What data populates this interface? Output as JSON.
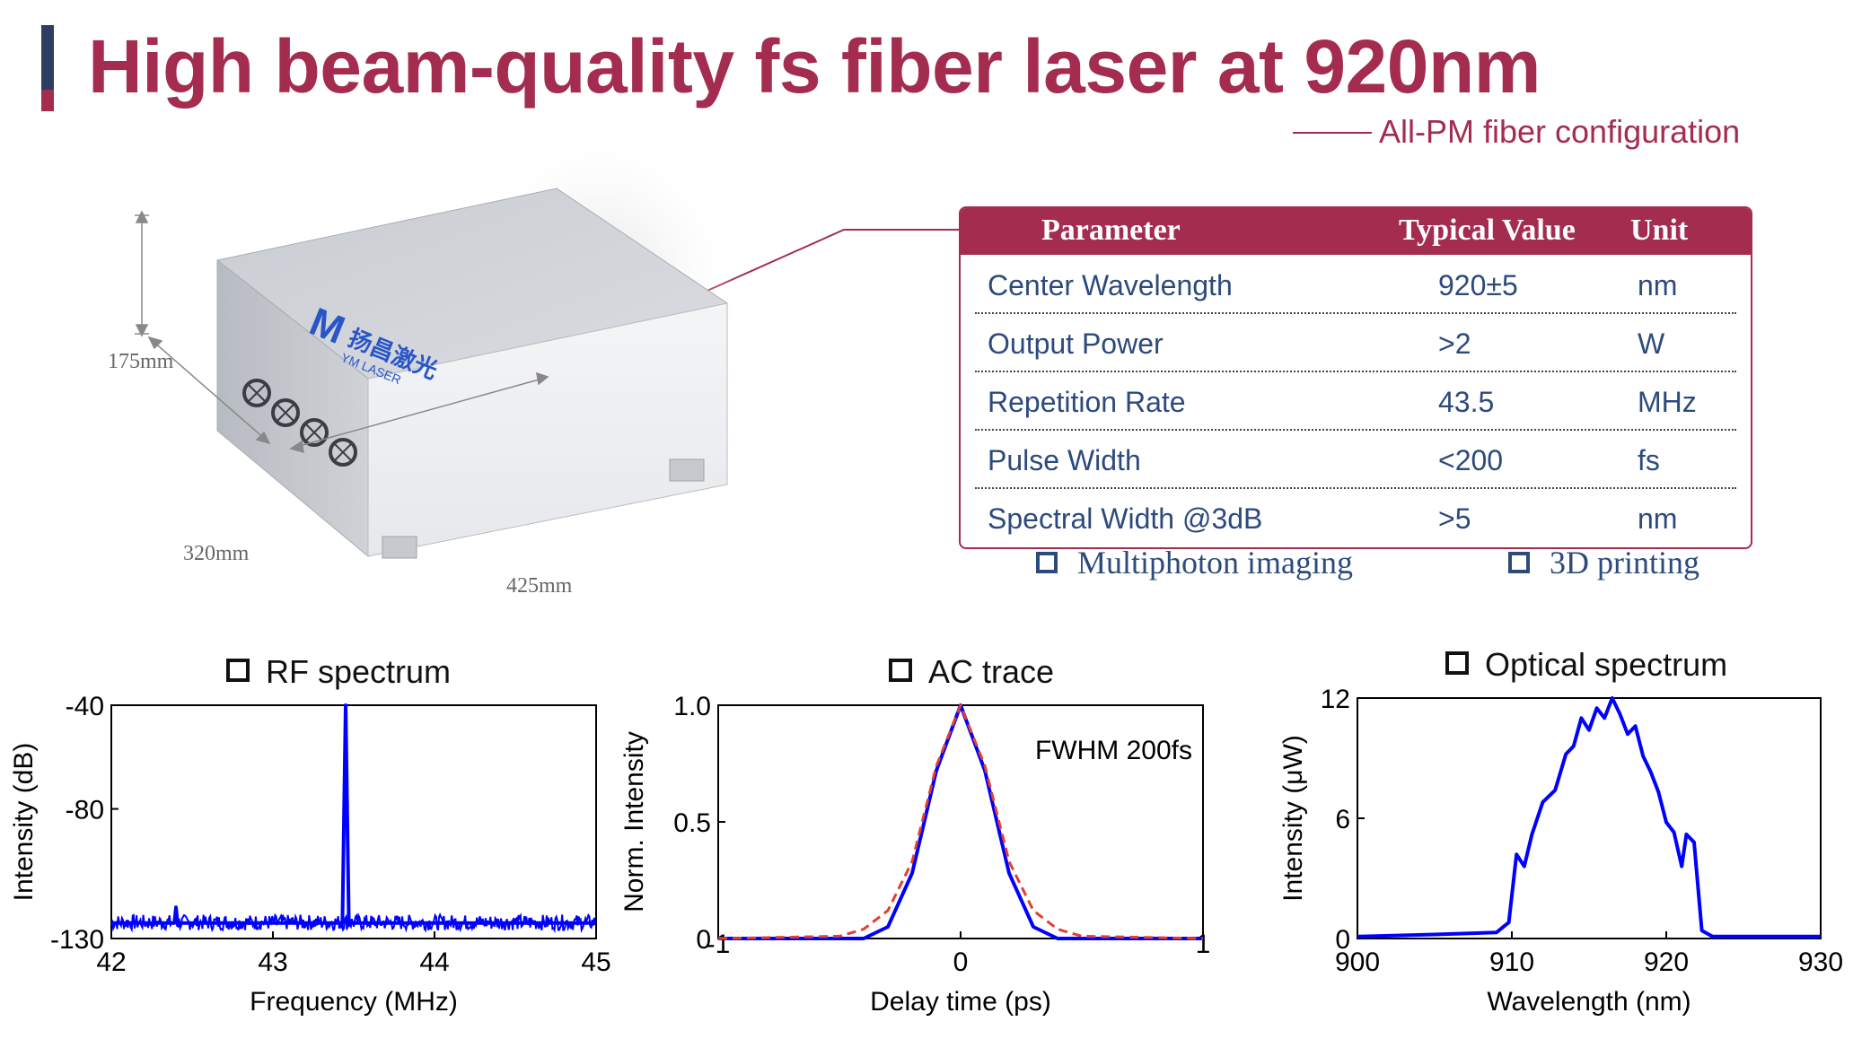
{
  "header": {
    "title": "High beam-quality fs fiber laser at 920nm",
    "subtitle": "All-PM fiber configuration"
  },
  "product": {
    "logo_text": "扬昌激光",
    "logo_sub": "YM LASER",
    "dimensions": {
      "height": "175mm",
      "depth": "320mm",
      "width": "425mm"
    }
  },
  "spec_table": {
    "headers": [
      "Parameter",
      "Typical Value",
      "Unit"
    ],
    "rows": [
      [
        "Center Wavelength",
        "920±5",
        "nm"
      ],
      [
        "Output Power",
        ">2",
        "W"
      ],
      [
        "Repetition Rate",
        "43.5",
        "MHz"
      ],
      [
        "Pulse Width",
        "<200",
        "fs"
      ],
      [
        "Spectral Width @3dB",
        ">5",
        "nm"
      ]
    ]
  },
  "applications": [
    "Multiphoton imaging",
    "3D printing"
  ],
  "colors": {
    "accent": "#a32c4f",
    "navy": "#2d4a7c",
    "series": "#0000ff",
    "fit": "#e04030"
  },
  "chart_data": [
    {
      "type": "line",
      "title": "RF spectrum",
      "xlabel": "Frequency (MHz)",
      "ylabel": "Intensity (dB)",
      "xlim": [
        42,
        45
      ],
      "ylim": [
        -130,
        -40
      ],
      "xticks": [
        "42",
        "43",
        "44",
        "45"
      ],
      "yticks": [
        "-40",
        "-80",
        "-130"
      ],
      "series": [
        {
          "noise_floor_db": -125,
          "points": [
            [
              42.0,
              -124
            ],
            [
              42.39,
              -124
            ],
            [
              42.4,
              -118
            ],
            [
              42.41,
              -124
            ],
            [
              43.43,
              -124
            ],
            [
              43.45,
              -40
            ],
            [
              43.47,
              -124
            ],
            [
              45.0,
              -124
            ]
          ]
        }
      ]
    },
    {
      "type": "line",
      "title": "AC trace",
      "xlabel": "Delay time (ps)",
      "ylabel": "Norm. Intensity",
      "xlim": [
        -1,
        1
      ],
      "ylim": [
        0,
        1.0
      ],
      "xticks": [
        "-1",
        "0",
        "1"
      ],
      "yticks": [
        "0",
        "0.5",
        "1.0"
      ],
      "annotation": "FWHM 200fs",
      "series": [
        {
          "points": [
            [
              -1,
              0
            ],
            [
              -0.4,
              0
            ],
            [
              -0.3,
              0.05
            ],
            [
              -0.2,
              0.28
            ],
            [
              -0.1,
              0.72
            ],
            [
              0,
              1
            ],
            [
              0.1,
              0.72
            ],
            [
              0.2,
              0.28
            ],
            [
              0.3,
              0.05
            ],
            [
              0.4,
              0
            ],
            [
              1,
              0
            ]
          ]
        },
        {
          "style": "dashed",
          "points": [
            [
              -1,
              0
            ],
            [
              -0.5,
              0.01
            ],
            [
              -0.4,
              0.04
            ],
            [
              -0.3,
              0.12
            ],
            [
              -0.2,
              0.33
            ],
            [
              -0.1,
              0.74
            ],
            [
              0,
              1
            ],
            [
              0.1,
              0.74
            ],
            [
              0.2,
              0.33
            ],
            [
              0.3,
              0.12
            ],
            [
              0.4,
              0.04
            ],
            [
              0.5,
              0.01
            ],
            [
              1,
              0
            ]
          ]
        }
      ]
    },
    {
      "type": "line",
      "title": "Optical spectrum",
      "xlabel": "Wavelength (nm)",
      "ylabel": "Intensity (μW)",
      "xlim": [
        900,
        930
      ],
      "ylim": [
        0,
        12
      ],
      "xticks": [
        "900",
        "910",
        "920",
        "930"
      ],
      "yticks": [
        "0",
        "6",
        "12"
      ],
      "series": [
        {
          "points": [
            [
              900,
              0.1
            ],
            [
              905,
              0.2
            ],
            [
              909,
              0.3
            ],
            [
              909.8,
              0.8
            ],
            [
              910.3,
              4.2
            ],
            [
              910.8,
              3.6
            ],
            [
              911.3,
              5.2
            ],
            [
              912,
              6.8
            ],
            [
              912.8,
              7.4
            ],
            [
              913.5,
              9.2
            ],
            [
              914,
              9.6
            ],
            [
              914.5,
              11
            ],
            [
              915,
              10.4
            ],
            [
              915.5,
              11.5
            ],
            [
              916,
              11
            ],
            [
              916.5,
              12
            ],
            [
              917,
              11.2
            ],
            [
              917.5,
              10.2
            ],
            [
              918,
              10.6
            ],
            [
              918.5,
              9.1
            ],
            [
              919,
              8.3
            ],
            [
              919.5,
              7.3
            ],
            [
              920,
              5.8
            ],
            [
              920.5,
              5.3
            ],
            [
              921,
              3.6
            ],
            [
              921.3,
              5.2
            ],
            [
              921.8,
              4.8
            ],
            [
              922.3,
              0.4
            ],
            [
              923,
              0.1
            ],
            [
              930,
              0.1
            ]
          ]
        }
      ]
    }
  ]
}
